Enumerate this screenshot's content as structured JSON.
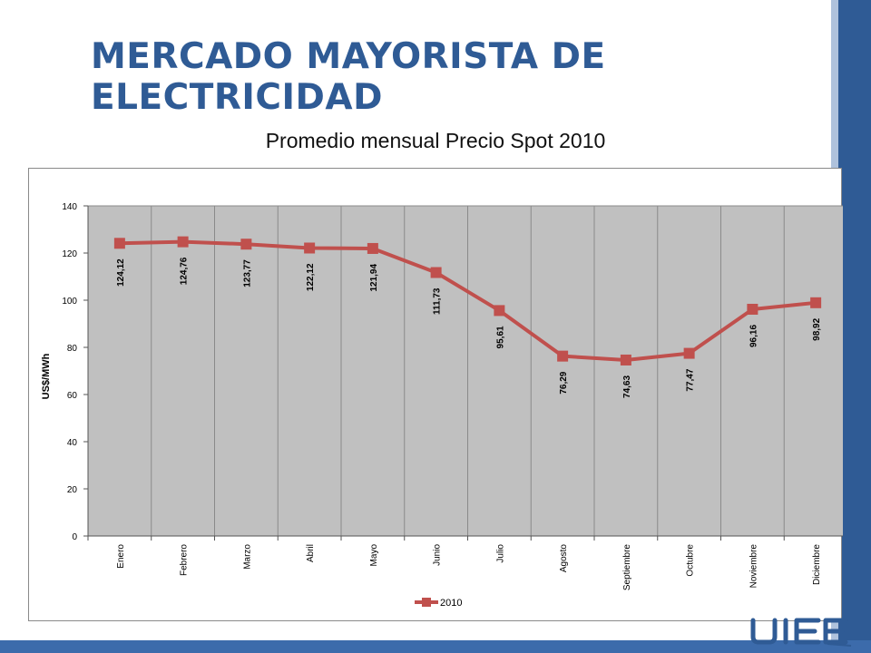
{
  "slide": {
    "title": "MERCADO MAYORISTA DE ELECTRICIDAD",
    "subtitle": "Promedio mensual Precio Spot 2010",
    "colors": {
      "title": "#2f5b95",
      "band": "#2f5b95",
      "series": "#c0504d",
      "plot_bg": "#c0c0c0"
    },
    "logo_icon": "company-logo-icon"
  },
  "chart_data": {
    "type": "line",
    "title": "Promedio mensual Precio Spot 2010",
    "ylabel": "US$/MWh",
    "xlabel": "",
    "ylim": [
      0,
      140
    ],
    "yticks": [
      0,
      20,
      40,
      60,
      80,
      100,
      120,
      140
    ],
    "grid": "vertical category gridlines",
    "legend_position": "bottom",
    "categories": [
      "Enero",
      "Febrero",
      "Marzo",
      "Abril",
      "Mayo",
      "Junio",
      "Julio",
      "Agosto",
      "Septiembre",
      "Octubre",
      "Noviembre",
      "Diciembre"
    ],
    "series": [
      {
        "name": "2010",
        "color": "#c0504d",
        "values": [
          124.12,
          124.76,
          123.77,
          122.12,
          121.94,
          111.73,
          95.61,
          76.29,
          74.63,
          77.47,
          96.16,
          98.92
        ],
        "labels": [
          "124,12",
          "124,76",
          "123,77",
          "122,12",
          "121,94",
          "111,73",
          "95,61",
          "76,29",
          "74,63",
          "77,47",
          "96,16",
          "98,92"
        ]
      }
    ]
  }
}
